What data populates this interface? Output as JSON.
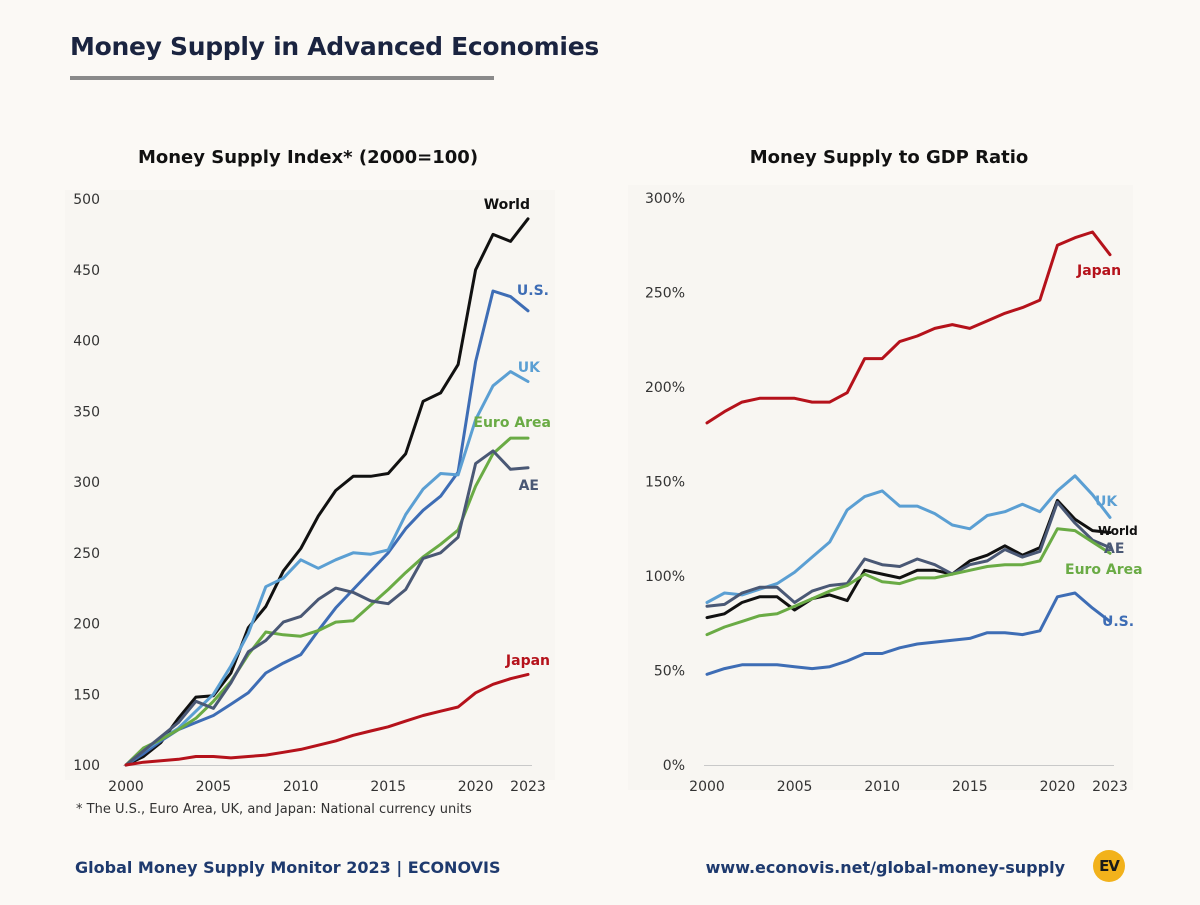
{
  "header": {
    "title": "Money Supply in Advanced Economies"
  },
  "footnote": "* The U.S., Euro Area, UK, and Japan: National currency units",
  "footer": {
    "left": "Global Money Supply Monitor 2023 | ECONOVIS",
    "right": "www.econovis.net/global-money-supply",
    "logo_text": "EV"
  },
  "chart_data": [
    {
      "type": "line",
      "title": "Money Supply Index* (2000=100)",
      "xlabel": "",
      "ylabel": "",
      "xlim": [
        2000,
        2023
      ],
      "ylim": [
        100,
        500
      ],
      "x_ticks": [
        2000,
        2005,
        2010,
        2015,
        2020,
        2023
      ],
      "y_ticks": [
        100,
        150,
        200,
        250,
        300,
        350,
        400,
        450,
        500
      ],
      "x": [
        2000,
        2001,
        2002,
        2003,
        2004,
        2005,
        2006,
        2007,
        2008,
        2009,
        2010,
        2011,
        2012,
        2013,
        2014,
        2015,
        2016,
        2017,
        2018,
        2019,
        2020,
        2021,
        2022,
        2023
      ],
      "series": [
        {
          "name": "World",
          "color": "#111111",
          "values": [
            100,
            106,
            116,
            133,
            148,
            149,
            165,
            197,
            212,
            237,
            253,
            276,
            294,
            304,
            304,
            306,
            320,
            357,
            363,
            383,
            450,
            475,
            470,
            486
          ]
        },
        {
          "name": "U.S.",
          "color": "#3e6db5",
          "values": [
            100,
            108,
            117,
            125,
            130,
            135,
            143,
            151,
            165,
            172,
            178,
            195,
            211,
            224,
            237,
            250,
            267,
            280,
            290,
            307,
            385,
            435,
            431,
            421
          ]
        },
        {
          "name": "UK",
          "color": "#5b9fd3",
          "values": [
            100,
            110,
            118,
            126,
            138,
            150,
            170,
            193,
            226,
            232,
            245,
            239,
            245,
            250,
            249,
            252,
            277,
            295,
            306,
            305,
            344,
            368,
            378,
            371
          ]
        },
        {
          "name": "Euro Area",
          "color": "#6aab45",
          "values": [
            100,
            112,
            118,
            125,
            133,
            145,
            159,
            178,
            194,
            192,
            191,
            195,
            201,
            202,
            213,
            224,
            236,
            247,
            256,
            266,
            297,
            320,
            331,
            331
          ]
        },
        {
          "name": "AE",
          "color": "#4a5875",
          "values": [
            100,
            110,
            120,
            130,
            145,
            140,
            158,
            180,
            188,
            201,
            205,
            217,
            225,
            222,
            216,
            214,
            224,
            246,
            250,
            261,
            313,
            322,
            309,
            310
          ]
        },
        {
          "name": "Japan",
          "color": "#b5121b",
          "values": [
            100,
            102,
            103,
            104,
            106,
            106,
            105,
            106,
            107,
            109,
            111,
            114,
            117,
            121,
            124,
            127,
            131,
            135,
            138,
            141,
            151,
            157,
            161,
            164
          ]
        }
      ]
    },
    {
      "type": "line",
      "title": "Money Supply to GDP Ratio",
      "xlabel": "",
      "ylabel": "",
      "xlim": [
        2000,
        2023
      ],
      "ylim": [
        0,
        300
      ],
      "x_ticks": [
        2000,
        2005,
        2010,
        2015,
        2020,
        2023
      ],
      "y_ticks": [
        "0%",
        "50%",
        "100%",
        "150%",
        "200%",
        "250%",
        "300%"
      ],
      "y_tick_values": [
        0,
        50,
        100,
        150,
        200,
        250,
        300
      ],
      "x": [
        2000,
        2001,
        2002,
        2003,
        2004,
        2005,
        2006,
        2007,
        2008,
        2009,
        2010,
        2011,
        2012,
        2013,
        2014,
        2015,
        2016,
        2017,
        2018,
        2019,
        2020,
        2021,
        2022,
        2023
      ],
      "series": [
        {
          "name": "Japan",
          "color": "#b5121b",
          "values": [
            181,
            187,
            192,
            194,
            194,
            194,
            192,
            192,
            197,
            215,
            215,
            224,
            227,
            231,
            233,
            231,
            235,
            239,
            242,
            246,
            275,
            279,
            282,
            270
          ]
        },
        {
          "name": "UK",
          "color": "#5b9fd3",
          "values": [
            86,
            91,
            90,
            93,
            96,
            102,
            110,
            118,
            135,
            142,
            145,
            137,
            137,
            133,
            127,
            125,
            132,
            134,
            138,
            134,
            145,
            153,
            143,
            131
          ]
        },
        {
          "name": "World",
          "color": "#111111",
          "values": [
            78,
            80,
            86,
            89,
            89,
            82,
            88,
            90,
            87,
            103,
            101,
            99,
            103,
            103,
            101,
            108,
            111,
            116,
            111,
            115,
            140,
            130,
            124,
            123
          ]
        },
        {
          "name": "AE",
          "color": "#4a5875",
          "values": [
            84,
            85,
            91,
            94,
            94,
            86,
            92,
            95,
            96,
            109,
            106,
            105,
            109,
            106,
            101,
            106,
            108,
            114,
            110,
            113,
            139,
            128,
            119,
            115
          ]
        },
        {
          "name": "Euro Area",
          "color": "#6aab45",
          "values": [
            69,
            73,
            76,
            79,
            80,
            84,
            88,
            92,
            95,
            101,
            97,
            96,
            99,
            99,
            101,
            103,
            105,
            106,
            106,
            108,
            125,
            124,
            118,
            112
          ]
        },
        {
          "name": "U.S.",
          "color": "#3e6db5",
          "values": [
            48,
            51,
            53,
            53,
            53,
            52,
            51,
            52,
            55,
            59,
            59,
            62,
            64,
            65,
            66,
            67,
            70,
            70,
            69,
            71,
            89,
            91,
            83,
            76
          ]
        }
      ]
    }
  ]
}
